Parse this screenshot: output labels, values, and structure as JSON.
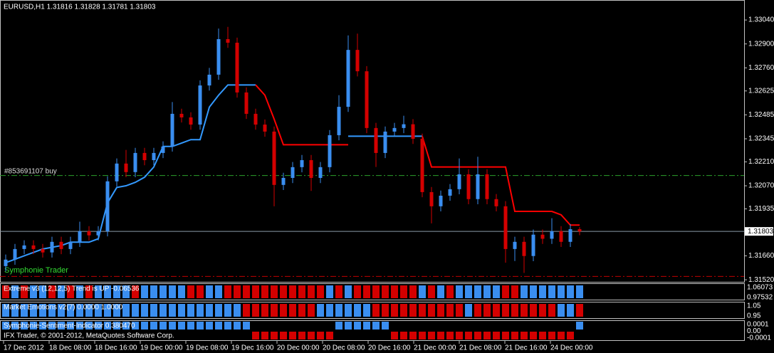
{
  "header": {
    "title": "EURUSD,H1  1.31816 1.31828 1.31781 1.31803"
  },
  "chart_data": {
    "type": "candlestick",
    "open": [
      1.316,
      1.31638,
      1.317,
      1.31721,
      1.317,
      1.3168,
      1.31742,
      1.317,
      1.31742,
      1.31804,
      1.3178,
      1.31804,
      1.32096,
      1.322,
      1.3215,
      1.32262,
      1.3222,
      1.32262,
      1.323,
      1.32491,
      1.3247,
      1.32428,
      1.32657,
      1.3272,
      1.32928,
      1.32907,
      1.32616,
      1.32491,
      1.32428,
      1.32387,
      1.32075,
      1.32116,
      1.32179,
      1.3222,
      1.32116,
      1.32179,
      1.32366,
      1.32532,
      1.32865,
      1.3274,
      1.32408,
      1.32262,
      1.32387,
      1.32408,
      1.3243,
      1.32345,
      1.32033,
      1.3195,
      1.32012,
      1.3205,
      1.32137,
      1.31992,
      1.32137,
      1.31992,
      1.3195,
      1.317,
      1.31742,
      1.31659,
      1.31784,
      1.3176,
      1.31804,
      1.31742,
      1.31816
    ],
    "high": [
      1.31668,
      1.3173,
      1.31751,
      1.31751,
      1.3173,
      1.31772,
      1.31772,
      1.31772,
      1.3186,
      1.31834,
      1.31834,
      1.32126,
      1.3223,
      1.3228,
      1.32292,
      1.32292,
      1.32292,
      1.3233,
      1.3256,
      1.32521,
      1.325,
      1.32687,
      1.3276,
      1.3299,
      1.33,
      1.32937,
      1.32646,
      1.32521,
      1.32458,
      1.32417,
      1.32146,
      1.32209,
      1.3225,
      1.3225,
      1.32209,
      1.32396,
      1.326,
      1.3295,
      1.3296,
      1.3277,
      1.32438,
      1.32417,
      1.32438,
      1.3248,
      1.3246,
      1.32375,
      1.32063,
      1.32042,
      1.3208,
      1.3223,
      1.32167,
      1.3224,
      1.32167,
      1.32022,
      1.3198,
      1.31772,
      1.31772,
      1.31814,
      1.31814,
      1.3188,
      1.31834,
      1.31846,
      1.31828
    ],
    "low": [
      1.3157,
      1.31608,
      1.3167,
      1.3167,
      1.3165,
      1.3165,
      1.3167,
      1.3167,
      1.31712,
      1.3175,
      1.3175,
      1.31774,
      1.32066,
      1.3212,
      1.3212,
      1.3219,
      1.3219,
      1.32232,
      1.3227,
      1.3244,
      1.32398,
      1.32398,
      1.32627,
      1.3269,
      1.32877,
      1.32586,
      1.32461,
      1.32398,
      1.32357,
      1.3195,
      1.32045,
      1.32086,
      1.32149,
      1.3204,
      1.32086,
      1.32149,
      1.32336,
      1.32502,
      1.3271,
      1.32378,
      1.3218,
      1.32232,
      1.32357,
      1.32378,
      1.32315,
      1.32003,
      1.3185,
      1.3192,
      1.31982,
      1.3202,
      1.31962,
      1.31962,
      1.31962,
      1.3192,
      1.3162,
      1.3163,
      1.3156,
      1.31629,
      1.3173,
      1.3173,
      1.31712,
      1.31712,
      1.31781
    ],
    "close": [
      1.31638,
      1.317,
      1.31721,
      1.317,
      1.3168,
      1.31742,
      1.317,
      1.31742,
      1.31804,
      1.3178,
      1.31804,
      1.32096,
      1.322,
      1.3215,
      1.32262,
      1.3222,
      1.32262,
      1.323,
      1.32491,
      1.3247,
      1.32428,
      1.32657,
      1.3272,
      1.32928,
      1.32907,
      1.32616,
      1.32491,
      1.32428,
      1.32387,
      1.32075,
      1.32116,
      1.32179,
      1.3222,
      1.32116,
      1.32179,
      1.32366,
      1.32532,
      1.32865,
      1.3274,
      1.32408,
      1.32262,
      1.32387,
      1.32408,
      1.3243,
      1.32345,
      1.32033,
      1.3195,
      1.32012,
      1.3205,
      1.32137,
      1.31992,
      1.32137,
      1.31992,
      1.3195,
      1.317,
      1.31742,
      1.31659,
      1.31784,
      1.3176,
      1.31804,
      1.31742,
      1.31816,
      1.31803
    ],
    "up_color": "#3a8ef0",
    "down_color": "#d40000",
    "ylim": [
      1.31508,
      1.33157
    ],
    "yticks": [
      {
        "value": 1.3304,
        "label": "1.33040"
      },
      {
        "value": 1.329,
        "label": "1.32900"
      },
      {
        "value": 1.3276,
        "label": "1.32760"
      },
      {
        "value": 1.32625,
        "label": "1.32625"
      },
      {
        "value": 1.32485,
        "label": "1.32485"
      },
      {
        "value": 1.32345,
        "label": "1.32345"
      },
      {
        "value": 1.3221,
        "label": "1.32210"
      },
      {
        "value": 1.3207,
        "label": "1.32070"
      },
      {
        "value": 1.31935,
        "label": "1.31935"
      },
      {
        "value": 1.3166,
        "label": "1.31660"
      },
      {
        "value": 1.3152,
        "label": "1.31520"
      }
    ],
    "current_price": {
      "value": 1.31803,
      "label": "1.31803"
    },
    "trail": [
      {
        "color": "#3399ff",
        "values": [
          1.3162,
          1.3164,
          1.3166,
          1.3168,
          1.317,
          1.3171,
          1.3172,
          1.3174,
          1.3174,
          1.3174,
          1.3176,
          1.3197,
          1.3206,
          1.3207,
          1.3209,
          1.3212,
          1.3218,
          1.323,
          1.323,
          1.3232,
          1.3234,
          1.3234,
          1.3253,
          1.326,
          1.3266,
          1.3266,
          1.3266,
          1.3266,
          null,
          null,
          null,
          null,
          null,
          null,
          null,
          null,
          null,
          1.3236,
          1.3236,
          1.3236,
          1.3236,
          1.3236,
          1.3236,
          1.3236,
          1.3236,
          1.3236,
          null,
          null,
          null,
          null,
          null,
          null,
          null,
          null,
          null,
          null,
          null,
          null,
          null,
          null,
          null,
          null,
          null
        ]
      },
      {
        "color": "#ff0000",
        "values": [
          null,
          null,
          null,
          null,
          null,
          null,
          null,
          null,
          null,
          null,
          null,
          null,
          null,
          null,
          null,
          null,
          null,
          null,
          null,
          null,
          null,
          null,
          null,
          null,
          null,
          null,
          null,
          1.3266,
          1.326,
          1.3246,
          1.3231,
          1.3231,
          1.3231,
          1.3231,
          1.3231,
          1.3231,
          1.3231,
          1.3231,
          null,
          null,
          null,
          null,
          null,
          null,
          null,
          1.3236,
          1.3218,
          1.3218,
          1.3218,
          1.3218,
          1.3218,
          1.3218,
          1.3218,
          1.3218,
          1.3218,
          1.3192,
          1.3192,
          1.3192,
          1.3192,
          1.3192,
          1.319,
          1.3184,
          1.3184
        ]
      }
    ],
    "order_line": {
      "label": "#853691107 buy",
      "value": 1.3213,
      "color": "#2ca02c"
    },
    "stop_line": {
      "value": 1.3154,
      "color": "#c00000"
    },
    "watermark": "Symphonie Trader"
  },
  "panels": [
    {
      "label": "Extreme v3 (12,12,5) Trend is UP -0.06536",
      "scale_labels": [
        "1.06073",
        "0.97532"
      ],
      "states": [
        -1,
        1,
        -1,
        1,
        1,
        -1,
        1,
        -1,
        1,
        -1,
        1,
        1,
        1,
        1,
        -1,
        1,
        1,
        1,
        1,
        1,
        -1,
        -1,
        1,
        1,
        -1,
        -1,
        -1,
        -1,
        -1,
        -1,
        -1,
        -1,
        -1,
        -1,
        -1,
        1,
        -1,
        1,
        -1,
        -1,
        -1,
        -1,
        -1,
        -1,
        -1,
        1,
        -1,
        1,
        -1,
        1,
        1,
        1,
        1,
        1,
        -1,
        -1,
        1,
        1,
        1,
        1,
        1,
        1,
        1
      ]
    },
    {
      "label": "Market Emotions v2(7) 0.0000 1.0000",
      "scale_labels": [
        "1.05",
        "0.95"
      ],
      "states": [
        1,
        1,
        1,
        1,
        1,
        1,
        1,
        1,
        1,
        1,
        1,
        1,
        1,
        1,
        1,
        1,
        1,
        1,
        1,
        1,
        1,
        1,
        1,
        1,
        1,
        1,
        -1,
        -1,
        -1,
        -1,
        -1,
        -1,
        -1,
        -1,
        1,
        1,
        1,
        1,
        1,
        1,
        -1,
        -1,
        -1,
        -1,
        -1,
        -1,
        -1,
        -1,
        -1,
        -1,
        1,
        -1,
        -1,
        -1,
        -1,
        -1,
        -1,
        -1,
        -1,
        -1,
        1,
        1,
        -1
      ]
    },
    {
      "label": "Symphonie-Sentiment-Indicator 0.380470",
      "scale_labels": [
        "0.0001",
        "0.00",
        "-0.0001"
      ],
      "footer": "IFX Trader, © 2001-2012, MetaQuotes Software Corp.",
      "states": [
        1,
        1,
        1,
        1,
        1,
        1,
        1,
        1,
        1,
        1,
        1,
        1,
        1,
        1,
        1,
        1,
        1,
        1,
        1,
        1,
        1,
        1,
        1,
        1,
        1,
        1,
        1,
        -1,
        -1,
        -1,
        -1,
        -1,
        -1,
        -1,
        -1,
        -1,
        1,
        1,
        1,
        1,
        1,
        1,
        -1,
        -1,
        -1,
        -1,
        -1,
        -1,
        -1,
        -1,
        -1,
        -1,
        -1,
        -1,
        -1,
        -1,
        -1,
        -1,
        -1,
        -1,
        -1,
        -1,
        1
      ]
    }
  ],
  "time_axis": [
    "17 Dec 2012",
    "18 Dec 08:00",
    "18 Dec 16:00",
    "19 Dec 00:00",
    "19 Dec 08:00",
    "19 Dec 16:00",
    "20 Dec 00:00",
    "20 Dec 08:00",
    "20 Dec 16:00",
    "21 Dec 00:00",
    "21 Dec 08:00",
    "21 Dec 16:00",
    "24 Dec 00:00"
  ]
}
